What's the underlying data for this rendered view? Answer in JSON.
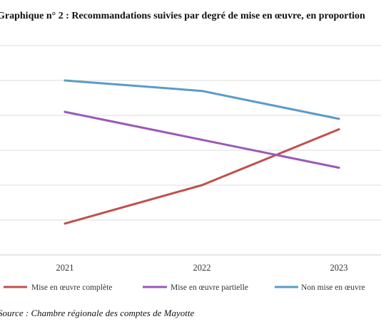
{
  "chart_data": {
    "type": "line",
    "title": "Graphique n° 2 :  Recommandations suivies par degré de mise en œuvre, en proportion",
    "categories": [
      "2021",
      "2022",
      "2023"
    ],
    "series": [
      {
        "name": "Mise en œuvre complète",
        "color": "#c0504d",
        "values": [
          9,
          20,
          36
        ]
      },
      {
        "name": "Mise en œuvre partielle",
        "color": "#9b59b6",
        "values": [
          41,
          33,
          25
        ]
      },
      {
        "name": "Non mise en œuvre",
        "color": "#5b9bc8",
        "values": [
          50,
          47,
          39
        ]
      }
    ],
    "ylim": [
      0,
      60
    ],
    "grid": true,
    "legend": "bottom",
    "source": "Source : Chambre régionale des comptes de Mayotte"
  }
}
